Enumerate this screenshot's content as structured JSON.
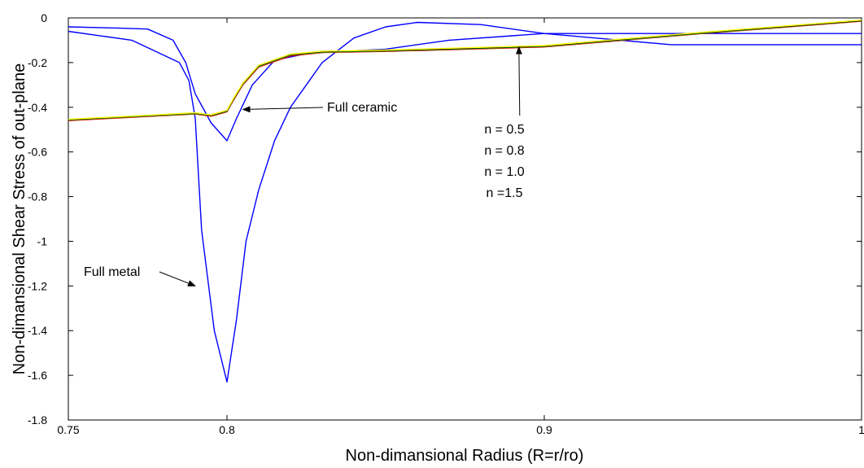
{
  "chart_data": {
    "type": "line",
    "title": "",
    "xlabel": "Non-dimansional Radius (R=r/ro)",
    "ylabel": "Non-dimansional Shear Stress of out-plane",
    "xlim": [
      0.75,
      1.0
    ],
    "ylim": [
      -1.8,
      0.0
    ],
    "xticks": [
      {
        "value": 0.75,
        "label": "0.75"
      },
      {
        "value": 0.8,
        "label": "0.8"
      },
      {
        "value": 0.9,
        "label": "0.9"
      },
      {
        "value": 1.0,
        "label": "1"
      }
    ],
    "yticks": [
      {
        "value": 0,
        "label": "0"
      },
      {
        "value": -0.2,
        "label": "-0.2"
      },
      {
        "value": -0.4,
        "label": "-0.4"
      },
      {
        "value": -0.6,
        "label": "-0.6"
      },
      {
        "value": -0.8,
        "label": "-0.8"
      },
      {
        "value": -1.0,
        "label": "-1"
      },
      {
        "value": -1.2,
        "label": "-1.2"
      },
      {
        "value": -1.4,
        "label": "-1.4"
      },
      {
        "value": -1.6,
        "label": "-1.6"
      },
      {
        "value": -1.8,
        "label": "-1.8"
      }
    ],
    "grid": false,
    "series": [
      {
        "color": "#0000ff",
        "x": [
          0.75,
          0.765,
          0.775,
          0.783,
          0.787,
          0.79,
          0.795,
          0.8,
          0.803,
          0.808,
          0.815,
          0.825,
          0.835,
          0.85,
          0.87,
          0.9,
          0.94,
          1.0
        ],
        "y": [
          -0.04,
          -0.045,
          -0.05,
          -0.1,
          -0.2,
          -0.34,
          -0.47,
          -0.55,
          -0.45,
          -0.3,
          -0.19,
          -0.16,
          -0.15,
          -0.14,
          -0.1,
          -0.07,
          -0.07,
          -0.07
        ]
      },
      {
        "color": "#0000ff",
        "x": [
          0.75,
          0.77,
          0.785,
          0.788,
          0.79,
          0.792,
          0.796,
          0.8,
          0.803,
          0.806,
          0.81,
          0.815,
          0.82,
          0.83,
          0.84,
          0.85,
          0.86,
          0.88,
          0.9,
          0.94,
          1.0
        ],
        "y": [
          -0.06,
          -0.1,
          -0.2,
          -0.28,
          -0.45,
          -0.95,
          -1.4,
          -1.63,
          -1.35,
          -1.0,
          -0.77,
          -0.55,
          -0.4,
          -0.2,
          -0.09,
          -0.04,
          -0.02,
          -0.03,
          -0.07,
          -0.12,
          -0.12
        ]
      },
      {
        "color": "#ff0000",
        "x": [
          0.75,
          0.79,
          0.795,
          0.8,
          0.802,
          0.805,
          0.81,
          0.82,
          0.83,
          0.85,
          0.9,
          0.95,
          1.0
        ],
        "y": [
          -0.46,
          -0.43,
          -0.44,
          -0.42,
          -0.37,
          -0.3,
          -0.22,
          -0.17,
          -0.155,
          -0.15,
          -0.13,
          -0.07,
          -0.015
        ]
      },
      {
        "color": "#00bb00",
        "x": [
          0.75,
          0.79,
          0.795,
          0.8,
          0.802,
          0.805,
          0.81,
          0.82,
          0.83,
          0.85,
          0.9,
          0.95,
          1.0
        ],
        "y": [
          -0.457,
          -0.428,
          -0.437,
          -0.418,
          -0.366,
          -0.296,
          -0.216,
          -0.166,
          -0.153,
          -0.148,
          -0.128,
          -0.068,
          -0.013
        ]
      },
      {
        "color": "#000000",
        "x": [
          0.75,
          0.79,
          0.795,
          0.8,
          0.802,
          0.805,
          0.81,
          0.82,
          0.83,
          0.85,
          0.9,
          0.95,
          1.0
        ],
        "y": [
          -0.455,
          -0.426,
          -0.435,
          -0.416,
          -0.364,
          -0.294,
          -0.214,
          -0.164,
          -0.151,
          -0.146,
          -0.126,
          -0.066,
          -0.012
        ]
      },
      {
        "color": "#ffff00",
        "x": [
          0.75,
          0.79,
          0.795,
          0.8,
          0.802,
          0.805,
          0.81,
          0.82,
          0.83,
          0.85,
          0.9,
          0.95,
          1.0
        ],
        "y": [
          -0.454,
          -0.425,
          -0.434,
          -0.414,
          -0.362,
          -0.292,
          -0.212,
          -0.162,
          -0.149,
          -0.144,
          -0.124,
          -0.064,
          -0.01
        ]
      }
    ],
    "annotations": [
      {
        "id": "full-ceramic",
        "text": "Full ceramic",
        "target": [
          0.805,
          -0.41
        ]
      },
      {
        "id": "full-metal",
        "text": "Full metal",
        "target": [
          0.79,
          -1.2
        ]
      },
      {
        "id": "n-05",
        "text": "n = 0.5",
        "target": [
          0.892,
          -0.13
        ]
      },
      {
        "id": "n-08",
        "text": "n = 0.8"
      },
      {
        "id": "n-10",
        "text": "n = 1.0"
      },
      {
        "id": "n-15",
        "text": "n =1.5"
      }
    ]
  }
}
